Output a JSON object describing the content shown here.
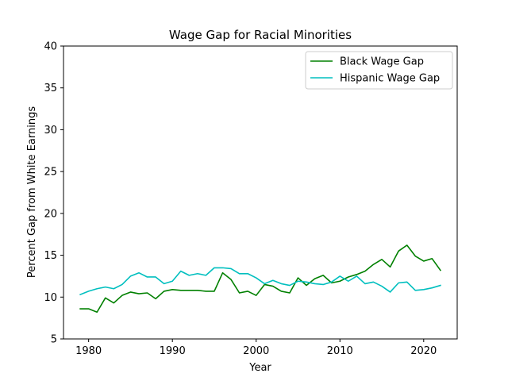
{
  "chart_data": {
    "type": "line",
    "title": "Wage Gap for Racial Minorities",
    "xlabel": "Year",
    "ylabel": "Percent Gap from White Earnings",
    "xlim": [
      1977,
      2024
    ],
    "ylim": [
      5,
      40
    ],
    "xticks": [
      1980,
      1990,
      2000,
      2010,
      2020
    ],
    "yticks": [
      5,
      10,
      15,
      20,
      25,
      30,
      35,
      40
    ],
    "grid": false,
    "legend_position": "top-right",
    "x": [
      1979,
      1980,
      1981,
      1982,
      1983,
      1984,
      1985,
      1986,
      1987,
      1988,
      1989,
      1990,
      1991,
      1992,
      1993,
      1994,
      1995,
      1996,
      1997,
      1998,
      1999,
      2000,
      2001,
      2002,
      2003,
      2004,
      2005,
      2006,
      2007,
      2008,
      2009,
      2010,
      2011,
      2012,
      2013,
      2014,
      2015,
      2016,
      2017,
      2018,
      2019,
      2020,
      2021,
      2022
    ],
    "series": [
      {
        "name": "Black Wage Gap",
        "color": "#008000",
        "values": [
          8.6,
          8.6,
          8.2,
          9.9,
          9.3,
          10.2,
          10.6,
          10.4,
          10.5,
          9.8,
          10.7,
          10.9,
          10.8,
          10.8,
          10.8,
          10.7,
          10.7,
          12.9,
          12.1,
          10.5,
          10.7,
          10.2,
          11.5,
          11.3,
          10.7,
          10.5,
          12.3,
          11.4,
          12.2,
          12.6,
          11.7,
          11.9,
          12.4,
          12.7,
          13.1,
          13.9,
          14.5,
          13.6,
          15.5,
          16.2,
          14.9,
          14.3,
          14.6,
          13.2
        ]
      },
      {
        "name": "Hispanic Wage Gap",
        "color": "#00bfbf",
        "values": [
          10.3,
          10.7,
          11.0,
          11.2,
          11.0,
          11.5,
          12.5,
          12.9,
          12.4,
          12.4,
          11.6,
          11.9,
          13.1,
          12.6,
          12.8,
          12.6,
          13.5,
          13.5,
          13.4,
          12.8,
          12.8,
          12.3,
          11.6,
          12.0,
          11.6,
          11.4,
          11.9,
          11.8,
          11.6,
          11.5,
          11.8,
          12.5,
          11.9,
          12.5,
          11.6,
          11.8,
          11.3,
          10.6,
          11.7,
          11.8,
          10.8,
          10.9,
          11.1,
          11.4
        ]
      }
    ]
  }
}
